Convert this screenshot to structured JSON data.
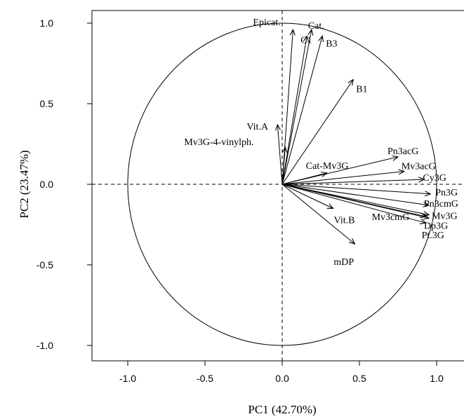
{
  "chart_data": {
    "type": "scatter",
    "subtype": "pca-correlation-circle",
    "title": "",
    "xlabel": "PC1 (42.70%)",
    "ylabel": "PC2 (23.47%)",
    "xlim": [
      -1.2,
      1.2
    ],
    "ylim": [
      -1.1,
      1.1
    ],
    "x_ticks": [
      -1.0,
      -0.5,
      0.0,
      0.5,
      1.0
    ],
    "y_ticks": [
      -1.0,
      -0.5,
      0.0,
      0.5,
      1.0
    ],
    "x_tick_labels": [
      "-1.0",
      "-0.5",
      "0.0",
      "0.5",
      "1.0"
    ],
    "y_tick_labels": [
      "-1.0",
      "-0.5",
      "0.0",
      "0.5",
      "1.0"
    ],
    "unit_circle": true,
    "reference_lines": [
      0,
      0
    ],
    "grid": false,
    "vectors": [
      {
        "name": "Epicat.",
        "x": 0.07,
        "y": 0.96
      },
      {
        "name": "C1",
        "x": 0.16,
        "y": 0.92
      },
      {
        "name": "Cat.",
        "x": 0.19,
        "y": 0.96
      },
      {
        "name": "B3",
        "x": 0.26,
        "y": 0.92
      },
      {
        "name": "B1",
        "x": 0.46,
        "y": 0.65
      },
      {
        "name": "Vit.A",
        "x": -0.03,
        "y": 0.37
      },
      {
        "name": "Mv3G-4-vinylph.",
        "x": 0.02,
        "y": 0.23
      },
      {
        "name": "Cat-Mv3G",
        "x": 0.29,
        "y": 0.07
      },
      {
        "name": "Pn3acG",
        "x": 0.75,
        "y": 0.17
      },
      {
        "name": "Mv3acG",
        "x": 0.79,
        "y": 0.08
      },
      {
        "name": "Cy3G",
        "x": 0.92,
        "y": 0.03
      },
      {
        "name": "Pn3G",
        "x": 0.96,
        "y": -0.06
      },
      {
        "name": "Pn3cmG",
        "x": 0.95,
        "y": -0.13
      },
      {
        "name": "Mv3G",
        "x": 0.95,
        "y": -0.19
      },
      {
        "name": "Dp3G",
        "x": 0.95,
        "y": -0.21
      },
      {
        "name": "Pt.3G",
        "x": 0.93,
        "y": -0.24
      },
      {
        "name": "Mv3cmG",
        "x": 0.93,
        "y": -0.2
      },
      {
        "name": "Vit.B",
        "x": 0.33,
        "y": -0.15
      },
      {
        "name": "mDP",
        "x": 0.47,
        "y": -0.37
      }
    ]
  }
}
